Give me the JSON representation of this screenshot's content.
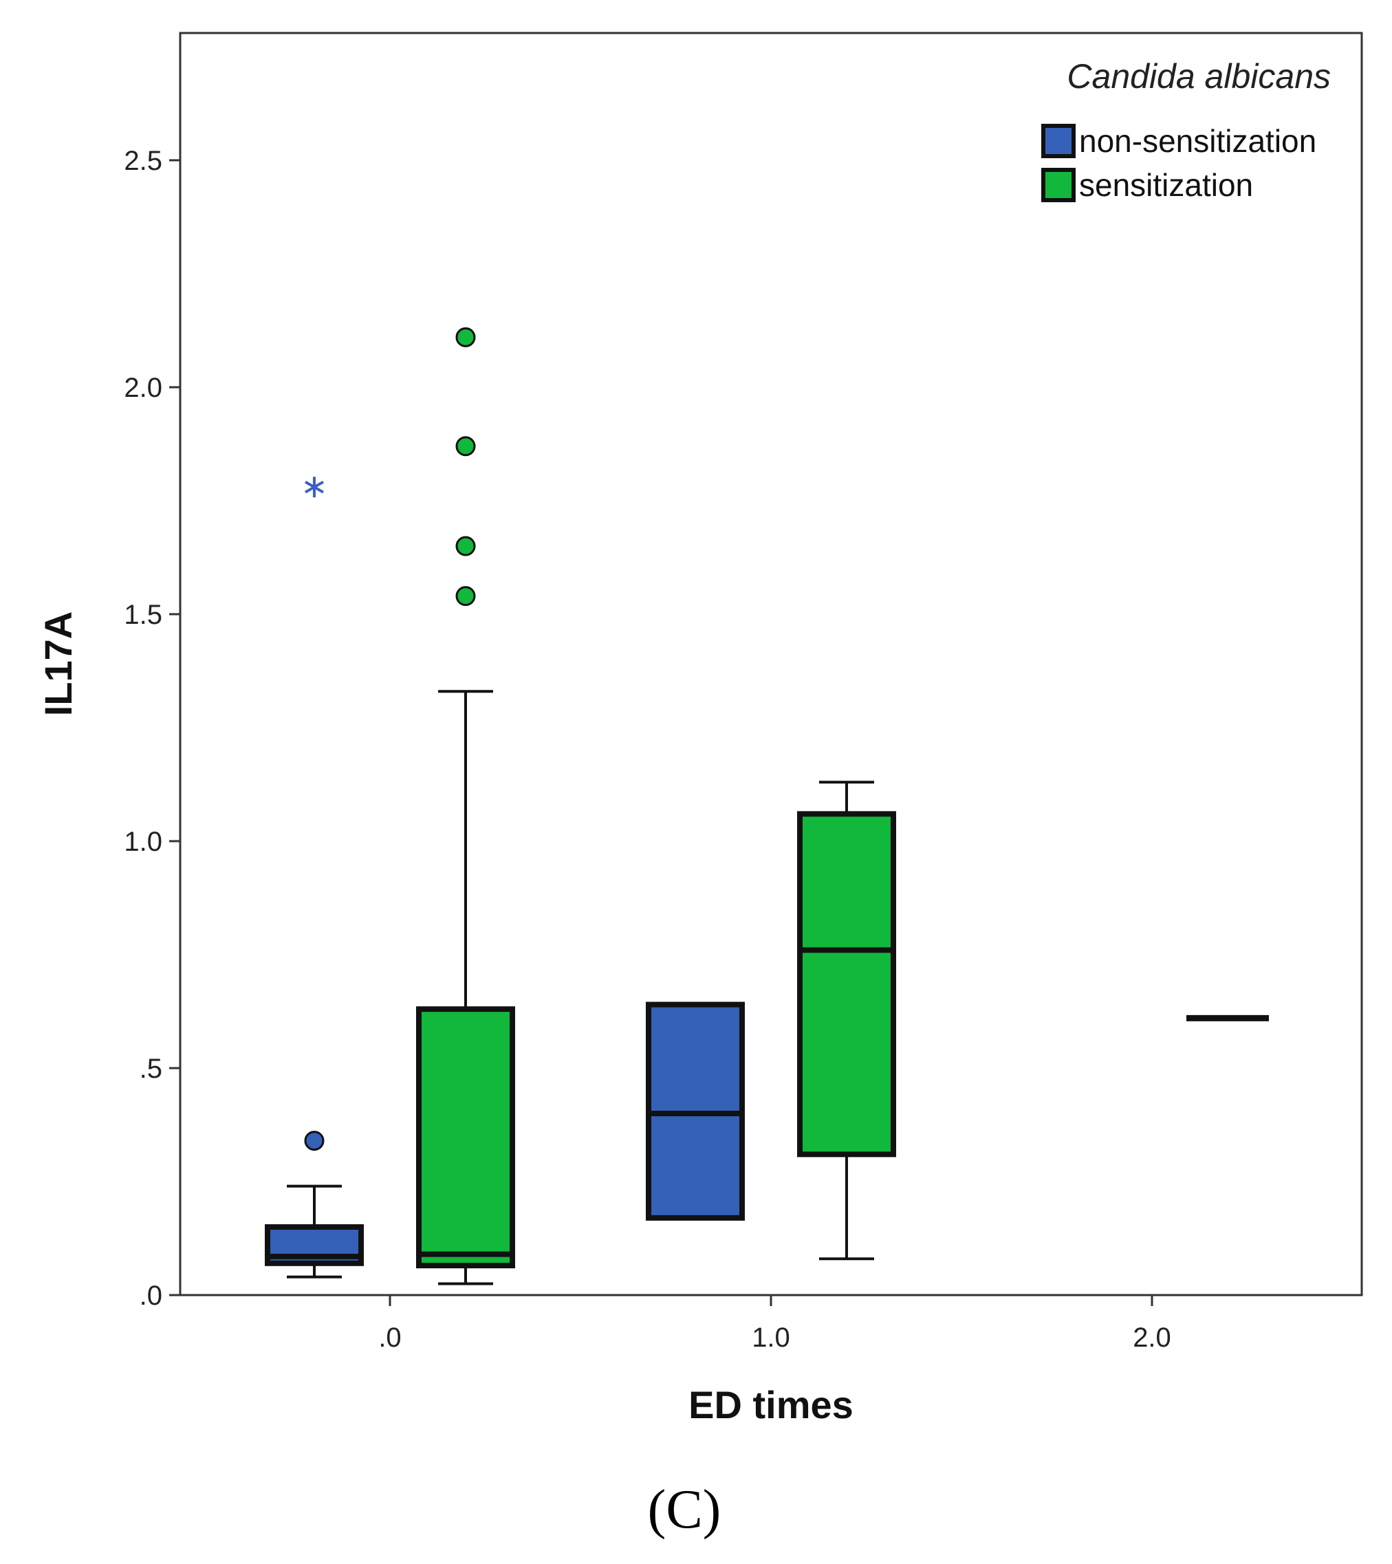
{
  "panel_label": "(C)",
  "colors": {
    "non_sensitization": "#3460b8",
    "sensitization": "#11b83c",
    "outline": "#111111",
    "star": "#3a5fc8"
  },
  "chart_data": {
    "type": "boxplot",
    "title": "",
    "xlabel": "ED times",
    "ylabel": "IL17A",
    "ylim": [
      0,
      2.75
    ],
    "yticks": [
      0,
      0.5,
      1.0,
      1.5,
      2.0,
      2.5
    ],
    "ytick_labels": [
      ".0",
      ".5",
      "1.0",
      "1.5",
      "2.0",
      "2.5"
    ],
    "categories": [
      ".0",
      "1.0",
      "2.0"
    ],
    "legend": {
      "title": "Candida albicans",
      "position": "top-right",
      "entries": [
        {
          "name": "non-sensitization",
          "color": "#3460b8"
        },
        {
          "name": "sensitization",
          "color": "#11b83c"
        }
      ]
    },
    "series": [
      {
        "name": "non-sensitization",
        "color": "#3460b8",
        "boxes": [
          {
            "category": ".0",
            "min": 0.04,
            "q1": 0.07,
            "median": 0.085,
            "q3": 0.15,
            "max": 0.24,
            "outliers": [
              0.34
            ],
            "extremes": [
              1.78
            ]
          },
          {
            "category": "1.0",
            "min": 0.17,
            "q1": 0.17,
            "median": 0.4,
            "q3": 0.64,
            "max": 0.64,
            "outliers": [],
            "extremes": []
          }
        ]
      },
      {
        "name": "sensitization",
        "color": "#11b83c",
        "boxes": [
          {
            "category": ".0",
            "min": 0.025,
            "q1": 0.065,
            "median": 0.09,
            "q3": 0.63,
            "max": 1.33,
            "outliers": [
              1.54,
              1.65,
              1.87,
              2.11
            ],
            "extremes": []
          },
          {
            "category": "1.0",
            "min": 0.08,
            "q1": 0.31,
            "median": 0.76,
            "q3": 1.06,
            "max": 1.13,
            "outliers": [],
            "extremes": []
          },
          {
            "category": "2.0",
            "min": 0.61,
            "q1": 0.61,
            "median": 0.61,
            "q3": 0.61,
            "max": 0.61,
            "outliers": [],
            "extremes": []
          }
        ]
      }
    ]
  }
}
